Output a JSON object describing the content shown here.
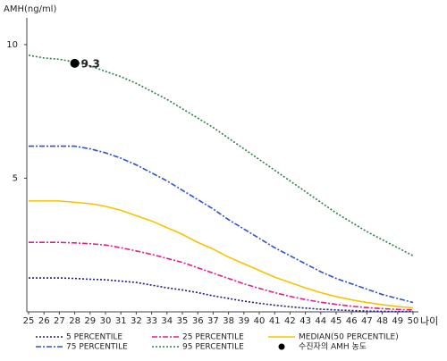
{
  "chart_data": {
    "type": "line",
    "y_label": "AMH(ng/ml)",
    "x_label": "나이",
    "x": [
      25,
      26,
      27,
      28,
      29,
      30,
      31,
      32,
      33,
      34,
      35,
      36,
      37,
      38,
      39,
      40,
      41,
      42,
      43,
      44,
      45,
      46,
      47,
      48,
      49,
      50
    ],
    "xlim": [
      25,
      50
    ],
    "xticks": [
      25,
      26,
      27,
      28,
      29,
      30,
      31,
      32,
      33,
      34,
      35,
      36,
      37,
      38,
      39,
      40,
      41,
      42,
      43,
      44,
      45,
      46,
      47,
      48,
      49,
      50
    ],
    "ylim": [
      0,
      11
    ],
    "yticks": [
      5,
      10
    ],
    "series": [
      {
        "name": "5 PERCENTILE",
        "color": "#1a1a80",
        "dash": "2,2",
        "values": [
          1.27,
          1.27,
          1.27,
          1.25,
          1.22,
          1.2,
          1.15,
          1.1,
          1.0,
          0.9,
          0.82,
          0.72,
          0.6,
          0.5,
          0.4,
          0.32,
          0.25,
          0.19,
          0.14,
          0.1,
          0.07,
          0.05,
          0.03,
          0.02,
          0.01,
          0.01
        ]
      },
      {
        "name": "75 PERCENTILE",
        "color": "#3050c8",
        "dash": "6,2,2,2",
        "values": [
          6.2,
          6.2,
          6.2,
          6.2,
          6.1,
          5.95,
          5.75,
          5.5,
          5.2,
          4.9,
          4.55,
          4.2,
          3.85,
          3.45,
          3.1,
          2.75,
          2.4,
          2.1,
          1.8,
          1.5,
          1.25,
          1.05,
          0.85,
          0.65,
          0.5,
          0.35
        ]
      },
      {
        "name": "25 PERCENTILE",
        "color": "#e0208a",
        "dash": "6,2,2,2",
        "values": [
          2.6,
          2.6,
          2.6,
          2.58,
          2.55,
          2.5,
          2.4,
          2.28,
          2.15,
          2.0,
          1.85,
          1.65,
          1.45,
          1.25,
          1.05,
          0.88,
          0.72,
          0.58,
          0.46,
          0.36,
          0.28,
          0.21,
          0.16,
          0.12,
          0.09,
          0.07
        ]
      },
      {
        "name": "95 PERCENTILE",
        "color": "#2e7d4a",
        "dash": "2,2",
        "values": [
          9.6,
          9.5,
          9.45,
          9.35,
          9.2,
          9.0,
          8.8,
          8.55,
          8.25,
          7.95,
          7.6,
          7.25,
          6.9,
          6.5,
          6.1,
          5.7,
          5.3,
          4.9,
          4.5,
          4.1,
          3.7,
          3.35,
          3.0,
          2.7,
          2.4,
          2.1
        ]
      },
      {
        "name": "MEDIAN(50 PERCENTILE)",
        "color": "#f5c400",
        "dash": "none",
        "values": [
          4.15,
          4.15,
          4.15,
          4.1,
          4.05,
          3.95,
          3.8,
          3.6,
          3.4,
          3.15,
          2.9,
          2.6,
          2.35,
          2.05,
          1.8,
          1.55,
          1.3,
          1.1,
          0.9,
          0.72,
          0.57,
          0.45,
          0.35,
          0.27,
          0.2,
          0.15
        ]
      },
      {
        "name": "수진자의 AMH 농도",
        "color": "#000000",
        "marker": true,
        "x": [
          28
        ],
        "values": [
          9.3
        ]
      }
    ]
  }
}
